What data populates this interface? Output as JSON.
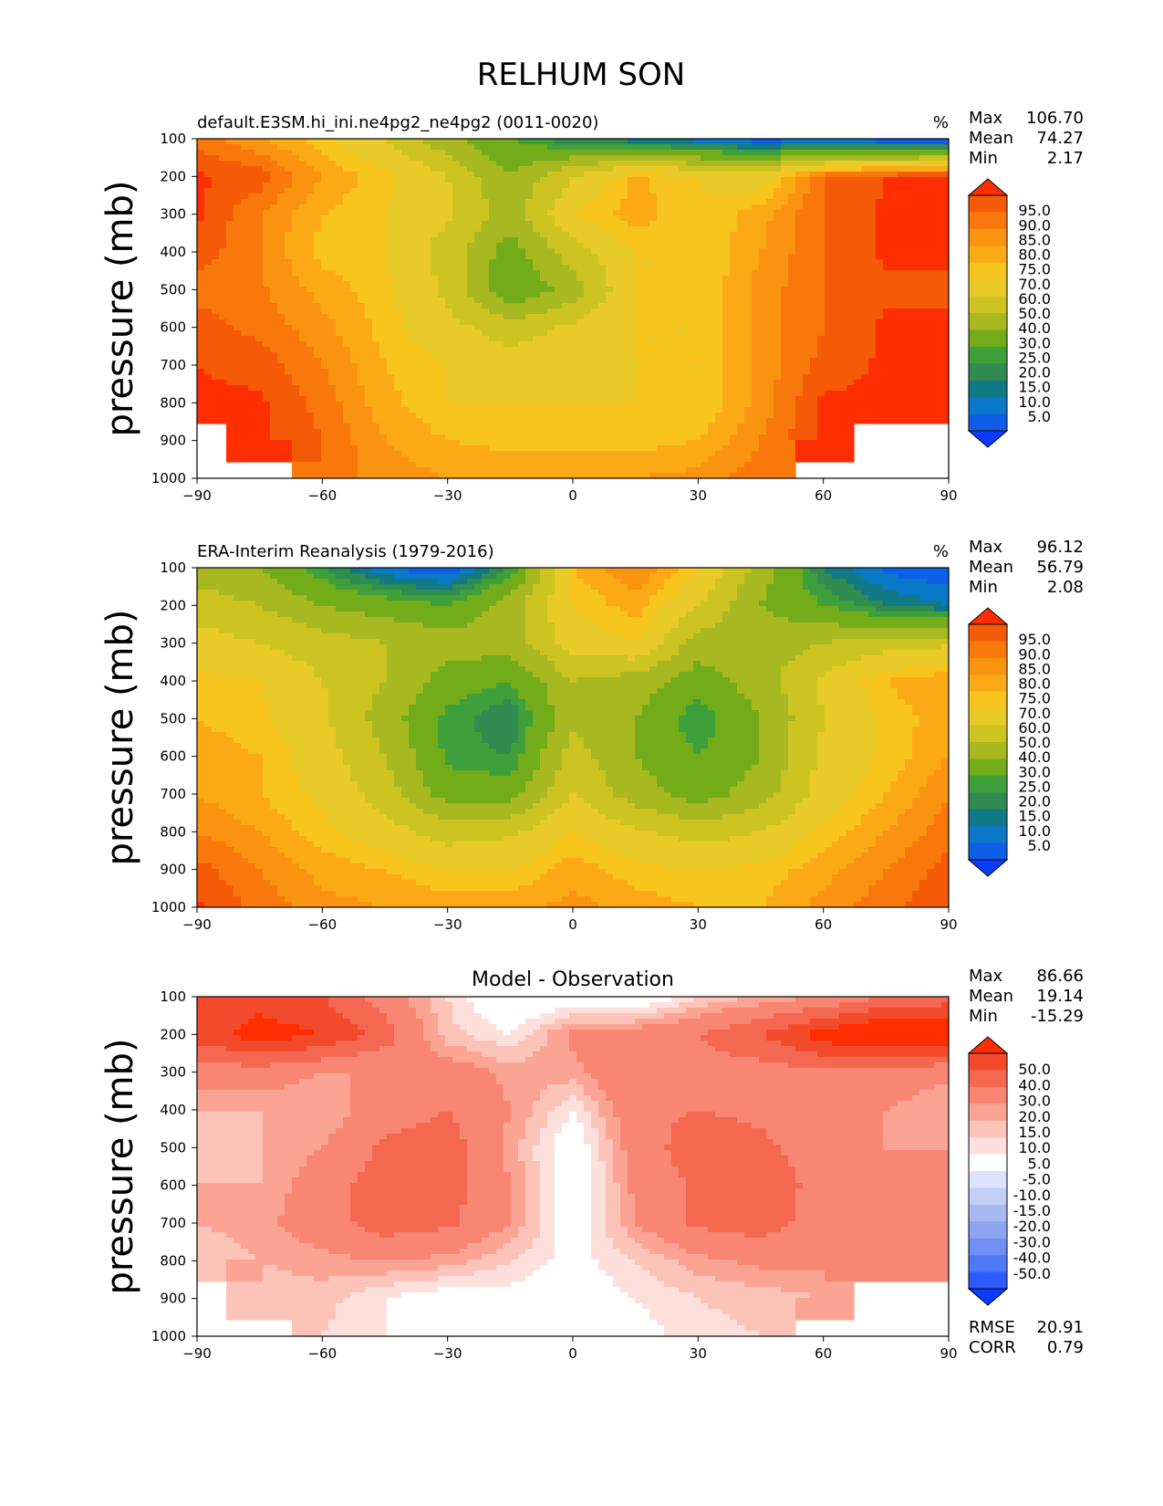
{
  "figure": {
    "title": "RELHUM SON"
  },
  "colors": {
    "abs_levels": [
      "#0a3cff",
      "#0e5ee8",
      "#0a78c8",
      "#117a86",
      "#308c50",
      "#3da03a",
      "#72ac18",
      "#a8b820",
      "#cdc422",
      "#e8ca28",
      "#f8c41e",
      "#fbaa16",
      "#fa9410",
      "#f8780c",
      "#f55a06",
      "#ff2e00"
    ],
    "diff_levels": [
      "#0a3cff",
      "#2c5bff",
      "#4f78f8",
      "#6f8ff5",
      "#8da5f0",
      "#a8b8f0",
      "#c4cff5",
      "#dde3fa",
      "#ffffff",
      "#fde0dc",
      "#fcc3b8",
      "#fba494",
      "#f88672",
      "#f46852",
      "#f44a2c",
      "#ff2e00"
    ]
  },
  "chart_data": [
    {
      "type": "heatmap",
      "title": "default.E3SM.hi_ini.ne4pg2_ne4pg2 (0011-0020)",
      "units": "%",
      "ylabel": "pressure (mb)",
      "xlabel": "",
      "x_ticks": [
        "−90",
        "−60",
        "−30",
        "0",
        "30",
        "60",
        "90"
      ],
      "y_ticks": [
        "100",
        "200",
        "300",
        "400",
        "500",
        "600",
        "700",
        "800",
        "900",
        "1000"
      ],
      "xlim": [
        -90,
        90
      ],
      "ylim": [
        1000,
        100
      ],
      "stats": [
        {
          "label": "Max",
          "value": "106.70"
        },
        {
          "label": "Mean",
          "value": "74.27"
        },
        {
          "label": "Min",
          "value": "2.17"
        }
      ],
      "colorbar_labels": [
        "95.0",
        "90.0",
        "85.0",
        "80.0",
        "75.0",
        "70.0",
        "60.0",
        "50.0",
        "40.0",
        "30.0",
        "25.0",
        "20.0",
        "15.0",
        "10.0",
        "5.0"
      ],
      "lat": [
        -90,
        -75,
        -60,
        -45,
        -30,
        -15,
        0,
        15,
        30,
        45,
        60,
        75,
        90
      ],
      "lev": [
        100,
        200,
        300,
        400,
        500,
        600,
        700,
        800,
        900,
        1000
      ],
      "values": [
        [
          88,
          80,
          72,
          60,
          42,
          30,
          20,
          15,
          10,
          5,
          5,
          3,
          3
        ],
        [
          96,
          93,
          80,
          72,
          60,
          40,
          60,
          76,
          70,
          65,
          90,
          95,
          96
        ],
        [
          96,
          85,
          75,
          70,
          62,
          45,
          70,
          78,
          70,
          78,
          90,
          96,
          97
        ],
        [
          93,
          85,
          73,
          70,
          55,
          35,
          55,
          70,
          70,
          80,
          90,
          96,
          97
        ],
        [
          88,
          86,
          78,
          72,
          58,
          30,
          45,
          70,
          70,
          82,
          90,
          94,
          93
        ],
        [
          93,
          88,
          82,
          73,
          63,
          55,
          62,
          70,
          70,
          82,
          90,
          96,
          97
        ],
        [
          95,
          93,
          85,
          75,
          70,
          65,
          68,
          70,
          70,
          82,
          92,
          96,
          97
        ],
        [
          96,
          96,
          88,
          77,
          70,
          70,
          70,
          70,
          70,
          82,
          96,
          96,
          96
        ],
        [
          null,
          96,
          90,
          80,
          75,
          73,
          73,
          73,
          75,
          85,
          96,
          null,
          null
        ],
        [
          null,
          null,
          88,
          83,
          80,
          80,
          80,
          80,
          82,
          88,
          null,
          null,
          null
        ]
      ]
    },
    {
      "type": "heatmap",
      "title": "ERA-Interim Reanalysis (1979-2016)",
      "units": "%",
      "ylabel": "pressure (mb)",
      "xlabel": "",
      "x_ticks": [
        "−90",
        "−60",
        "−30",
        "0",
        "30",
        "60",
        "90"
      ],
      "y_ticks": [
        "100",
        "200",
        "300",
        "400",
        "500",
        "600",
        "700",
        "800",
        "900",
        "1000"
      ],
      "xlim": [
        -90,
        90
      ],
      "ylim": [
        1000,
        100
      ],
      "stats": [
        {
          "label": "Max",
          "value": "96.12"
        },
        {
          "label": "Mean",
          "value": "56.79"
        },
        {
          "label": "Min",
          "value": "2.08"
        }
      ],
      "colorbar_labels": [
        "95.0",
        "90.0",
        "85.0",
        "80.0",
        "75.0",
        "70.0",
        "60.0",
        "50.0",
        "40.0",
        "30.0",
        "25.0",
        "20.0",
        "15.0",
        "10.0",
        "5.0"
      ],
      "lat": [
        -90,
        -75,
        -60,
        -45,
        -30,
        -15,
        0,
        15,
        30,
        45,
        60,
        75,
        90
      ],
      "lev": [
        100,
        200,
        300,
        400,
        500,
        600,
        700,
        800,
        900,
        1000
      ],
      "values": [
        [
          45,
          40,
          25,
          10,
          5,
          25,
          75,
          85,
          72,
          45,
          20,
          8,
          5
        ],
        [
          55,
          50,
          40,
          35,
          30,
          45,
          70,
          78,
          60,
          40,
          30,
          20,
          15
        ],
        [
          65,
          60,
          55,
          50,
          45,
          45,
          65,
          70,
          45,
          45,
          50,
          55,
          58
        ],
        [
          72,
          70,
          60,
          50,
          35,
          30,
          50,
          45,
          35,
          45,
          62,
          75,
          80
        ],
        [
          75,
          72,
          62,
          45,
          28,
          20,
          48,
          40,
          25,
          40,
          60,
          72,
          78
        ],
        [
          78,
          75,
          65,
          50,
          28,
          25,
          55,
          40,
          30,
          40,
          62,
          72,
          80
        ],
        [
          80,
          75,
          68,
          55,
          35,
          35,
          60,
          45,
          35,
          45,
          65,
          75,
          85
        ],
        [
          85,
          80,
          72,
          65,
          55,
          58,
          70,
          62,
          55,
          60,
          72,
          80,
          88
        ],
        [
          92,
          85,
          78,
          75,
          70,
          70,
          78,
          72,
          70,
          72,
          78,
          85,
          92
        ],
        [
          96,
          88,
          82,
          80,
          78,
          78,
          82,
          78,
          75,
          75,
          82,
          88,
          95
        ]
      ]
    },
    {
      "type": "heatmap",
      "title": "Model - Observation",
      "units": "",
      "ylabel": "pressure (mb)",
      "xlabel": "",
      "x_ticks": [
        "−90",
        "−60",
        "−30",
        "0",
        "30",
        "60",
        "90"
      ],
      "y_ticks": [
        "100",
        "200",
        "300",
        "400",
        "500",
        "600",
        "700",
        "800",
        "900",
        "1000"
      ],
      "xlim": [
        -90,
        90
      ],
      "ylim": [
        1000,
        100
      ],
      "stats": [
        {
          "label": "Max",
          "value": "86.66"
        },
        {
          "label": "Mean",
          "value": "19.14"
        },
        {
          "label": "Min",
          "value": "-15.29"
        }
      ],
      "colorbar_labels": [
        "50.0",
        "40.0",
        "30.0",
        "20.0",
        "15.0",
        "10.0",
        "5.0",
        "-5.0",
        "-10.0",
        "-15.0",
        "-20.0",
        "-30.0",
        "-40.0",
        "-50.0"
      ],
      "extra_stats": [
        {
          "label": "RMSE",
          "value": "20.91"
        },
        {
          "label": "CORR",
          "value": "0.79"
        }
      ],
      "lat": [
        -90,
        -75,
        -60,
        -45,
        -30,
        -15,
        0,
        15,
        30,
        45,
        60,
        75,
        90
      ],
      "lev": [
        100,
        200,
        300,
        400,
        500,
        600,
        700,
        800,
        900,
        1000
      ],
      "values": [
        [
          40,
          45,
          40,
          25,
          10,
          -5,
          0,
          -5,
          10,
          15,
          20,
          30,
          35
        ],
        [
          45,
          55,
          50,
          35,
          12,
          5,
          22,
          25,
          30,
          40,
          55,
          65,
          60
        ],
        [
          25,
          25,
          20,
          20,
          25,
          18,
          18,
          30,
          25,
          25,
          28,
          25,
          22
        ],
        [
          15,
          15,
          15,
          25,
          30,
          20,
          5,
          28,
          30,
          28,
          25,
          20,
          15
        ],
        [
          10,
          15,
          20,
          32,
          35,
          18,
          -2,
          25,
          35,
          32,
          25,
          20,
          20
        ],
        [
          15,
          15,
          25,
          35,
          35,
          20,
          -2,
          22,
          32,
          38,
          25,
          22,
          22
        ],
        [
          15,
          18,
          25,
          35,
          32,
          20,
          0,
          20,
          32,
          35,
          25,
          22,
          22
        ],
        [
          10,
          15,
          18,
          20,
          18,
          10,
          2,
          10,
          18,
          22,
          22,
          20,
          20
        ],
        [
          null,
          12,
          12,
          5,
          0,
          2,
          0,
          5,
          10,
          12,
          15,
          null,
          null
        ],
        [
          null,
          null,
          10,
          5,
          0,
          5,
          0,
          2,
          8,
          10,
          null,
          null,
          null
        ]
      ]
    }
  ]
}
